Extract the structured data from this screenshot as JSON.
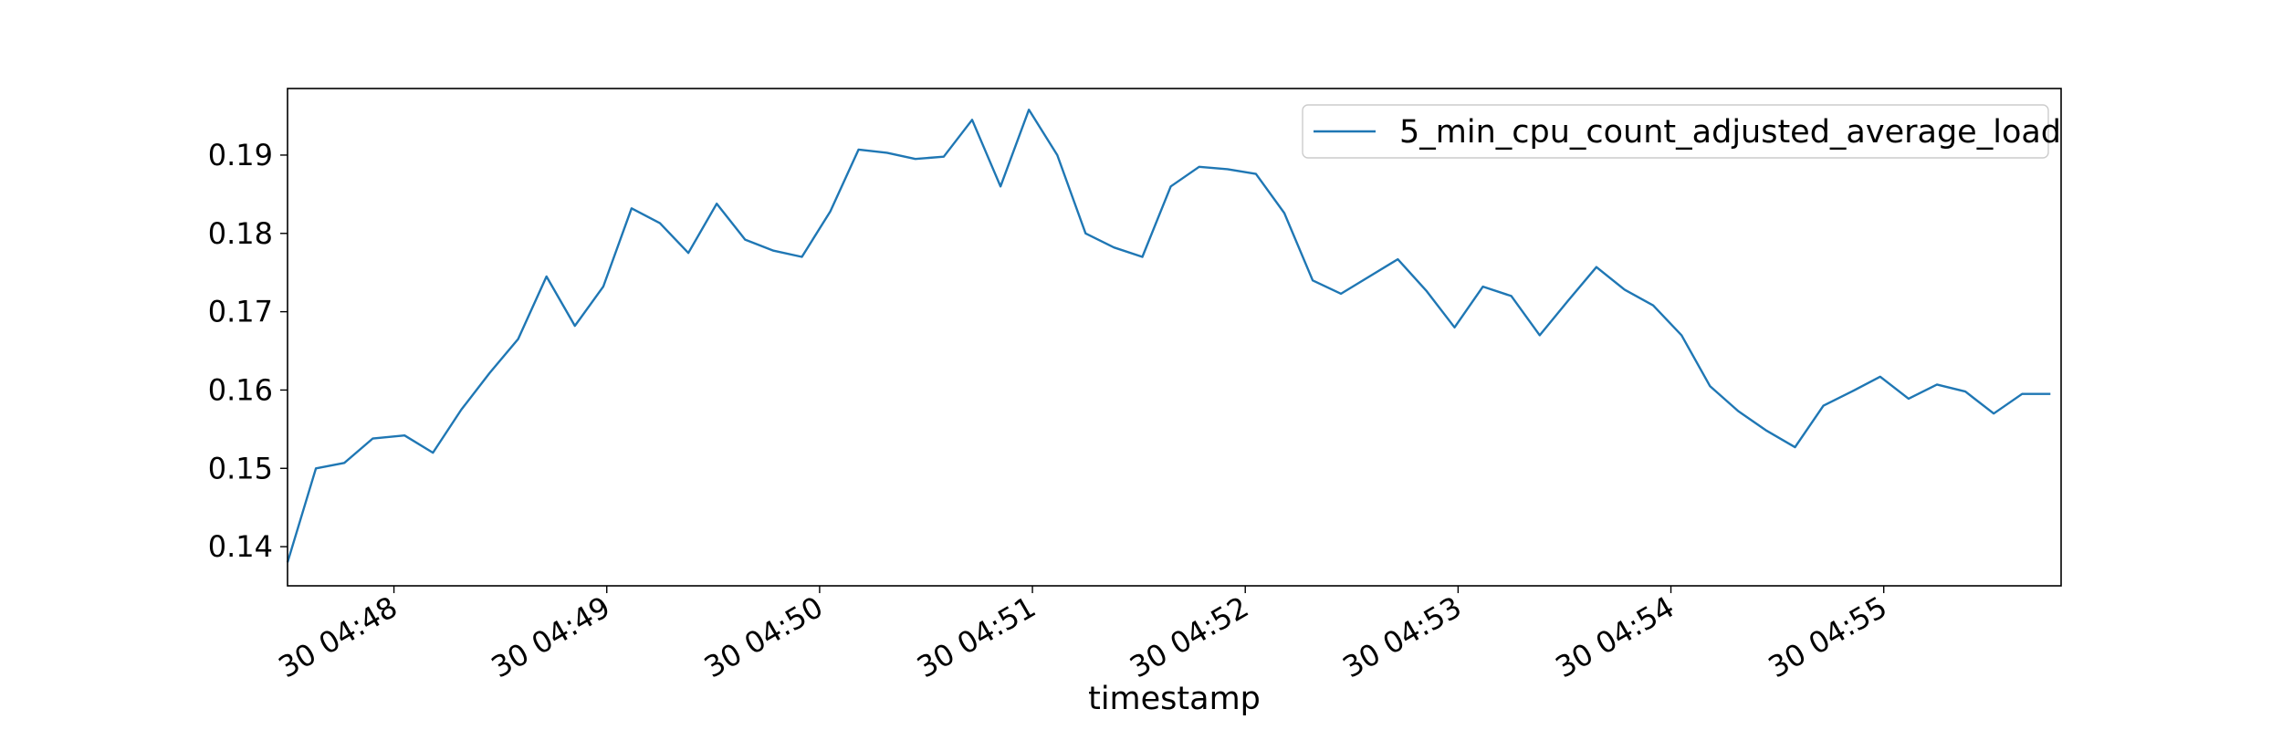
{
  "chart_data": {
    "type": "line",
    "title": "",
    "xlabel": "timestamp",
    "ylabel": "",
    "x_tick_labels": [
      "30 04:48",
      "30 04:49",
      "30 04:50",
      "30 04:51",
      "30 04:52",
      "30 04:53",
      "30 04:54",
      "30 04:55"
    ],
    "x_tick_times": [
      "04:48:00",
      "04:49:00",
      "04:50:00",
      "04:51:00",
      "04:52:00",
      "04:53:00",
      "04:54:00",
      "04:55:00"
    ],
    "y_ticks": [
      0.14,
      0.15,
      0.16,
      0.17,
      0.18,
      0.19
    ],
    "xlim": [
      "04:47:30",
      "04:55:50"
    ],
    "ylim": [
      0.135,
      0.1985
    ],
    "grid": false,
    "legend_position": "top-right",
    "series": [
      {
        "name": "5_min_cpu_count_adjusted_average_load",
        "color": "#1f77b4",
        "x": [
          "04:47:30",
          "04:47:38",
          "04:47:46",
          "04:47:54",
          "04:48:03",
          "04:48:11",
          "04:48:19",
          "04:48:27",
          "04:48:35",
          "04:48:43",
          "04:48:51",
          "04:48:59",
          "04:49:07",
          "04:49:15",
          "04:49:23",
          "04:49:31",
          "04:49:39",
          "04:49:47",
          "04:49:55",
          "04:50:03",
          "04:50:11",
          "04:50:19",
          "04:50:27",
          "04:50:35",
          "04:50:43",
          "04:50:51",
          "04:50:59",
          "04:51:07",
          "04:51:15",
          "04:51:23",
          "04:51:31",
          "04:51:39",
          "04:51:47",
          "04:51:55",
          "04:52:03",
          "04:52:11",
          "04:52:19",
          "04:52:27",
          "04:52:35",
          "04:52:43",
          "04:52:51",
          "04:52:59",
          "04:53:07",
          "04:53:15",
          "04:53:23",
          "04:53:31",
          "04:53:39",
          "04:53:47",
          "04:53:55",
          "04:54:03",
          "04:54:11",
          "04:54:19",
          "04:54:27",
          "04:54:35",
          "04:54:43",
          "04:54:51",
          "04:54:59",
          "04:55:07",
          "04:55:15",
          "04:55:23",
          "04:55:31",
          "04:55:39",
          "04:55:47"
        ],
        "values": [
          0.138,
          0.15,
          0.1507,
          0.1538,
          0.1542,
          0.152,
          0.1575,
          0.1622,
          0.1665,
          0.1745,
          0.1682,
          0.1732,
          0.1832,
          0.1813,
          0.1775,
          0.1838,
          0.1792,
          0.1778,
          0.177,
          0.1828,
          0.1907,
          0.1903,
          0.1895,
          0.1898,
          0.1945,
          0.186,
          0.1958,
          0.19,
          0.18,
          0.1782,
          0.177,
          0.186,
          0.1885,
          0.1882,
          0.1876,
          0.1826,
          0.174,
          0.1723,
          0.1745,
          0.1767,
          0.1727,
          0.168,
          0.1732,
          0.172,
          0.167,
          0.1714,
          0.1757,
          0.1728,
          0.1708,
          0.167,
          0.1605,
          0.1573,
          0.1548,
          0.1527,
          0.158,
          0.1598,
          0.1617,
          0.1589,
          0.1607,
          0.1598,
          0.157,
          0.1595,
          0.1595
        ]
      }
    ]
  }
}
